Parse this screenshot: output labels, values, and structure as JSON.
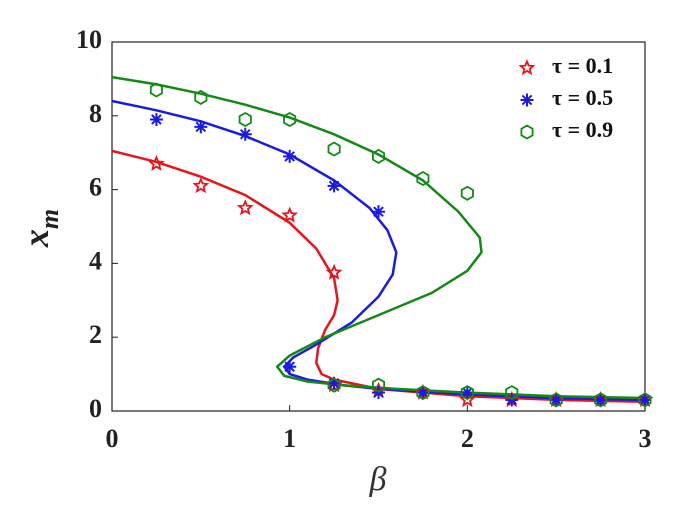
{
  "chart_data": {
    "type": "scatter-fit",
    "xlabel": "β",
    "ylabel": {
      "text": "x",
      "subscript": "m"
    },
    "xlim": [
      0,
      3
    ],
    "xticks": [
      0,
      1,
      2,
      3
    ],
    "ylim": [
      0,
      10
    ],
    "yticks": [
      0,
      2,
      4,
      6,
      8,
      10
    ],
    "legend": "upper right",
    "box": true,
    "series": [
      {
        "name": "τ = 0.1",
        "color": "#e8141b",
        "marker": "star",
        "x": [
          0.25,
          0.5,
          0.75,
          1.0,
          1.25,
          1.25,
          1.5,
          1.75,
          2.0,
          2.25,
          2.5,
          2.75,
          3.0
        ],
        "values": [
          6.7,
          6.1,
          5.5,
          5.3,
          3.75,
          0.7,
          0.55,
          0.5,
          0.3,
          0.3,
          0.3,
          0.3,
          0.3
        ],
        "fit_x": [
          0,
          0.25,
          0.5,
          0.75,
          1.0,
          1.15,
          1.25,
          1.27,
          1.25,
          1.2,
          1.16,
          1.15,
          1.18,
          1.25,
          1.5,
          2.0,
          2.5,
          3.0
        ],
        "fit_values": [
          7.05,
          6.75,
          6.35,
          5.85,
          5.1,
          4.4,
          3.6,
          3.0,
          2.6,
          2.2,
          1.7,
          1.3,
          1.0,
          0.85,
          0.6,
          0.4,
          0.3,
          0.25
        ]
      },
      {
        "name": "τ = 0.5",
        "color": "#1a1ae6",
        "marker": "asterisk",
        "x": [
          0.25,
          0.5,
          0.75,
          1.0,
          1.25,
          1.5,
          1.0,
          1.25,
          1.5,
          1.75,
          2.0,
          2.25,
          2.5,
          2.75,
          3.0
        ],
        "values": [
          7.9,
          7.7,
          7.5,
          6.9,
          6.1,
          5.4,
          1.2,
          0.75,
          0.5,
          0.5,
          0.5,
          0.3,
          0.3,
          0.3,
          0.3
        ],
        "fit_x": [
          0,
          0.25,
          0.5,
          0.75,
          1.0,
          1.25,
          1.45,
          1.55,
          1.6,
          1.58,
          1.5,
          1.35,
          1.15,
          1.02,
          0.97,
          1.0,
          1.1,
          1.3,
          1.5,
          2.0,
          2.5,
          3.0
        ],
        "fit_values": [
          8.4,
          8.15,
          7.85,
          7.45,
          6.95,
          6.25,
          5.5,
          4.9,
          4.3,
          3.7,
          3.1,
          2.4,
          1.8,
          1.45,
          1.2,
          1.0,
          0.85,
          0.7,
          0.6,
          0.45,
          0.35,
          0.3
        ]
      },
      {
        "name": "τ = 0.9",
        "color": "#138a13",
        "marker": "hexagon",
        "x": [
          0.25,
          0.5,
          0.75,
          1.0,
          1.25,
          1.5,
          1.75,
          2.0,
          1.25,
          1.5,
          1.75,
          2.0,
          2.25,
          2.5,
          2.75,
          3.0
        ],
        "values": [
          8.7,
          8.5,
          7.9,
          7.9,
          7.1,
          6.9,
          6.3,
          5.9,
          0.7,
          0.7,
          0.5,
          0.5,
          0.5,
          0.3,
          0.3,
          0.3
        ],
        "fit_x": [
          0,
          0.25,
          0.5,
          0.75,
          1.0,
          1.25,
          1.5,
          1.75,
          1.95,
          2.07,
          2.08,
          2.0,
          1.8,
          1.5,
          1.2,
          1.0,
          0.93,
          0.97,
          1.1,
          1.3,
          1.6,
          2.0,
          2.5,
          3.0
        ],
        "fit_values": [
          9.05,
          8.85,
          8.6,
          8.3,
          7.95,
          7.5,
          6.95,
          6.25,
          5.4,
          4.7,
          4.3,
          3.8,
          3.2,
          2.6,
          2.0,
          1.5,
          1.2,
          0.95,
          0.8,
          0.7,
          0.6,
          0.5,
          0.4,
          0.35
        ]
      }
    ]
  }
}
